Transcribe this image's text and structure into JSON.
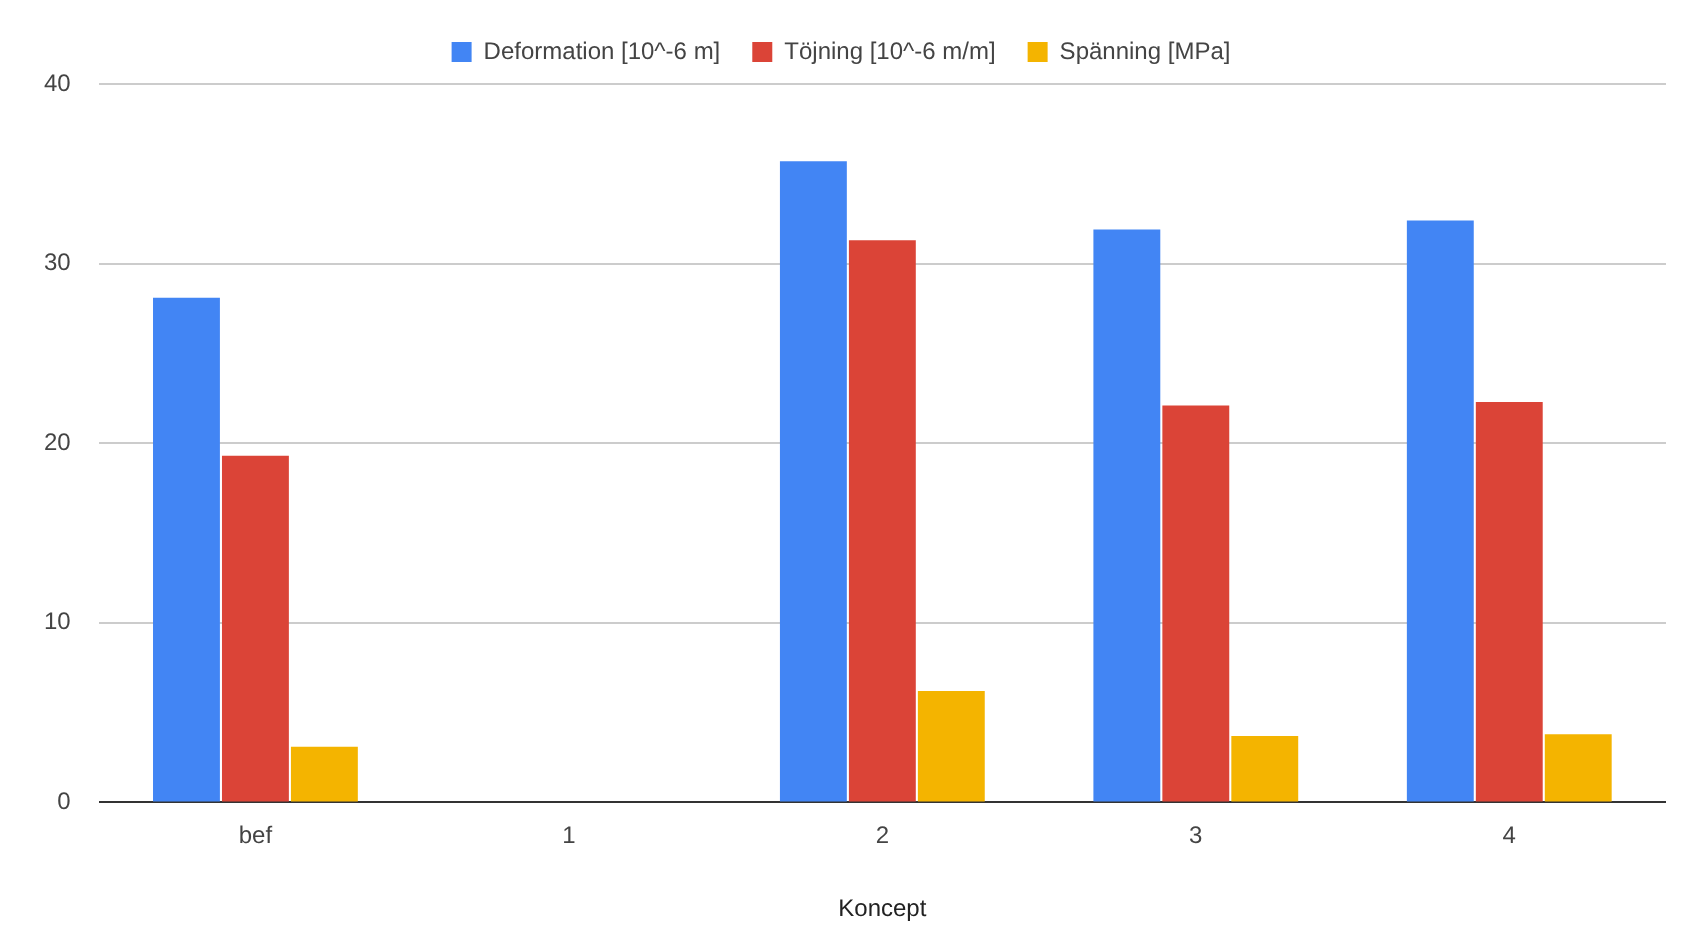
{
  "chart_data": {
    "type": "bar",
    "xlabel": "Koncept",
    "categories": [
      "bef",
      "1",
      "2",
      "3",
      "4"
    ],
    "series": [
      {
        "name": "Deformation [10^-6 m]",
        "color": "#4285f4",
        "values": [
          28.1,
          null,
          35.7,
          31.9,
          32.4
        ]
      },
      {
        "name": "Töjning [10^-6 m/m]",
        "color": "#db4437",
        "values": [
          19.3,
          null,
          31.3,
          22.1,
          22.3
        ]
      },
      {
        "name": "Spänning [MPa]",
        "color": "#f4b400",
        "values": [
          3.1,
          null,
          6.2,
          3.7,
          3.8
        ]
      }
    ],
    "ylim": [
      0,
      40
    ],
    "yticks": [
      0,
      10,
      20,
      30,
      40
    ],
    "grid": "y",
    "legend": "top"
  }
}
